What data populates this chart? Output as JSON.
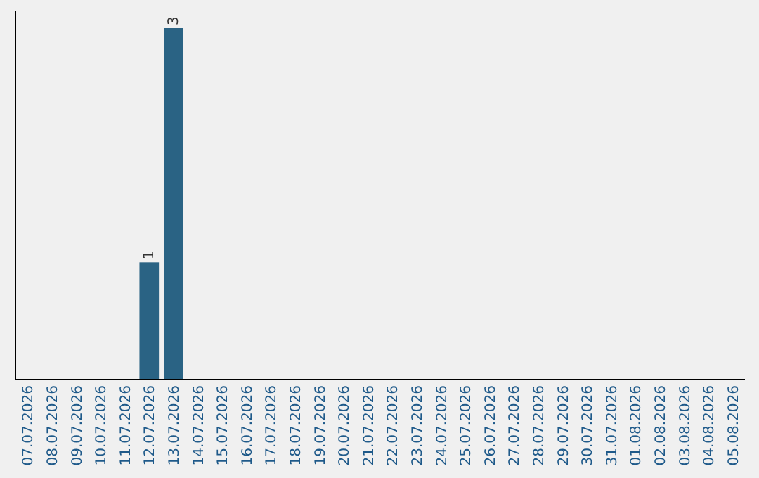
{
  "chart_data": {
    "type": "bar",
    "categories": [
      "07.07.2026",
      "08.07.2026",
      "09.07.2026",
      "10.07.2026",
      "11.07.2026",
      "12.07.2026",
      "13.07.2026",
      "14.07.2026",
      "15.07.2026",
      "16.07.2026",
      "17.07.2026",
      "18.07.2026",
      "19.07.2026",
      "20.07.2026",
      "21.07.2026",
      "22.07.2026",
      "23.07.2026",
      "24.07.2026",
      "25.07.2026",
      "26.07.2026",
      "27.07.2026",
      "28.07.2026",
      "29.07.2026",
      "30.07.2026",
      "31.07.2026",
      "01.08.2026",
      "02.08.2026",
      "03.08.2026",
      "04.08.2026",
      "05.08.2026"
    ],
    "values": [
      0,
      0,
      0,
      0,
      0,
      1,
      3,
      0,
      0,
      0,
      0,
      0,
      0,
      0,
      0,
      0,
      0,
      0,
      0,
      0,
      0,
      0,
      0,
      0,
      0,
      0,
      0,
      0,
      0,
      0
    ],
    "value_labels": [
      null,
      null,
      null,
      null,
      null,
      "1",
      "3",
      null,
      null,
      null,
      null,
      null,
      null,
      null,
      null,
      null,
      null,
      null,
      null,
      null,
      null,
      null,
      null,
      null,
      null,
      null,
      null,
      null,
      null,
      null
    ],
    "color": "#2a6384",
    "tick_labels": "x",
    "grid": false
  }
}
